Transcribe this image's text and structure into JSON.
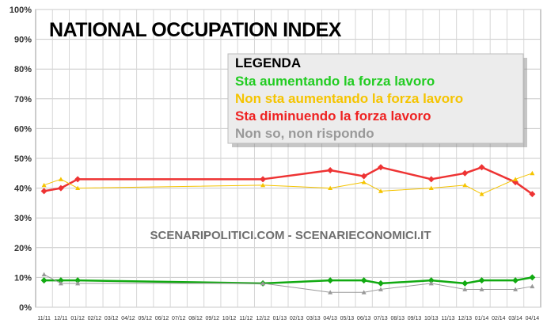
{
  "chart_data": {
    "type": "line",
    "title": "NATIONAL OCCUPATION INDEX",
    "watermark": "SCENARIPOLITICI.COM - SCENARIECONOMICI.IT",
    "legend": {
      "title": "LEGENDA",
      "placement": "top-right",
      "items": [
        {
          "label": "Sta aumentando la forza lavoro",
          "color": "#22cc22"
        },
        {
          "label": "Non sta aumentando la forza lavoro",
          "color": "#f5c400"
        },
        {
          "label": "Sta diminuendo la forza lavoro",
          "color": "#ee2222"
        },
        {
          "label": "Non so, non rispondo",
          "color": "#999999"
        }
      ]
    },
    "ylim": [
      0,
      100
    ],
    "y_ticks": [
      "0%",
      "10%",
      "20%",
      "30%",
      "40%",
      "50%",
      "60%",
      "70%",
      "80%",
      "90%",
      "100%"
    ],
    "grid": true,
    "categories": [
      "11/11",
      "12/11",
      "01/12",
      "02/12",
      "03/12",
      "04/12",
      "05/12",
      "06/12",
      "07/12",
      "08/12",
      "09/12",
      "10/12",
      "11/12",
      "12/12",
      "01/13",
      "02/13",
      "03/13",
      "04/13",
      "05/13",
      "06/13",
      "07/13",
      "08/13",
      "09/13",
      "10/13",
      "11/13",
      "12/13",
      "01/14",
      "02/14",
      "03/14",
      "04/14"
    ],
    "series": [
      {
        "color": "#ee3333",
        "line_width": 2.5,
        "marker": "diamond",
        "points": [
          {
            "x": "11/11",
            "y": 39
          },
          {
            "x": "12/11",
            "y": 40
          },
          {
            "x": "01/12",
            "y": 43
          },
          {
            "x": "12/12",
            "y": 43
          },
          {
            "x": "04/13",
            "y": 46
          },
          {
            "x": "06/13",
            "y": 44
          },
          {
            "x": "07/13",
            "y": 47
          },
          {
            "x": "10/13",
            "y": 43
          },
          {
            "x": "12/13",
            "y": 45
          },
          {
            "x": "01/14",
            "y": 47
          },
          {
            "x": "03/14",
            "y": 42
          },
          {
            "x": "04/14",
            "y": 38
          }
        ]
      },
      {
        "color": "#f5c400",
        "line_width": 1,
        "marker": "triangle",
        "points": [
          {
            "x": "11/11",
            "y": 41
          },
          {
            "x": "12/11",
            "y": 43
          },
          {
            "x": "01/12",
            "y": 40
          },
          {
            "x": "12/12",
            "y": 41
          },
          {
            "x": "04/13",
            "y": 40
          },
          {
            "x": "06/13",
            "y": 42
          },
          {
            "x": "07/13",
            "y": 39
          },
          {
            "x": "10/13",
            "y": 40
          },
          {
            "x": "12/13",
            "y": 41
          },
          {
            "x": "01/14",
            "y": 38
          },
          {
            "x": "03/14",
            "y": 43
          },
          {
            "x": "04/14",
            "y": 45
          }
        ]
      },
      {
        "color": "#11aa11",
        "line_width": 2.5,
        "marker": "diamond",
        "points": [
          {
            "x": "11/11",
            "y": 9
          },
          {
            "x": "12/11",
            "y": 9
          },
          {
            "x": "01/12",
            "y": 9
          },
          {
            "x": "12/12",
            "y": 8
          },
          {
            "x": "04/13",
            "y": 9
          },
          {
            "x": "06/13",
            "y": 9
          },
          {
            "x": "07/13",
            "y": 8
          },
          {
            "x": "10/13",
            "y": 9
          },
          {
            "x": "12/13",
            "y": 8
          },
          {
            "x": "01/14",
            "y": 9
          },
          {
            "x": "03/14",
            "y": 9
          },
          {
            "x": "04/14",
            "y": 10
          }
        ]
      },
      {
        "color": "#999999",
        "line_width": 1,
        "marker": "triangle",
        "points": [
          {
            "x": "11/11",
            "y": 11
          },
          {
            "x": "12/11",
            "y": 8
          },
          {
            "x": "01/12",
            "y": 8
          },
          {
            "x": "12/12",
            "y": 8
          },
          {
            "x": "04/13",
            "y": 5
          },
          {
            "x": "06/13",
            "y": 5
          },
          {
            "x": "07/13",
            "y": 6
          },
          {
            "x": "10/13",
            "y": 8
          },
          {
            "x": "12/13",
            "y": 6
          },
          {
            "x": "01/14",
            "y": 6
          },
          {
            "x": "03/14",
            "y": 6
          },
          {
            "x": "04/14",
            "y": 7
          }
        ]
      }
    ]
  }
}
